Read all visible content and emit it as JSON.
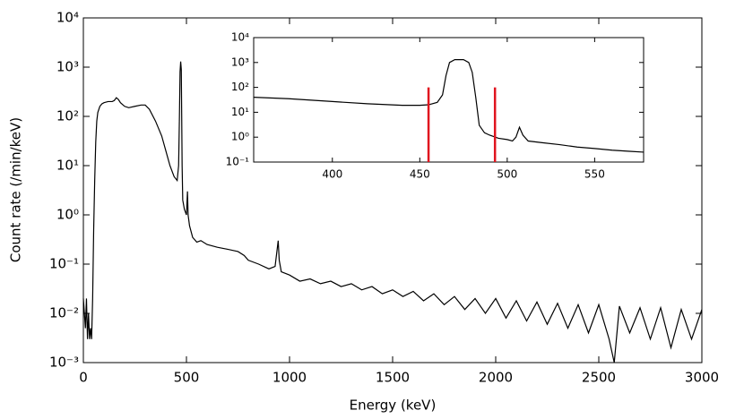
{
  "chart_data": [
    {
      "type": "line",
      "xlabel": "Energy (keV)",
      "ylabel": "Count rate (/min/keV)",
      "log_y": true,
      "color": "#000000",
      "xlim": [
        0,
        3000
      ],
      "ylim": [
        0.001,
        10000
      ],
      "xticks": [
        0,
        500,
        1000,
        1500,
        2000,
        2500,
        3000
      ],
      "yticks": [
        {
          "value": 0.001,
          "label": "10⁻³"
        },
        {
          "value": 0.01,
          "label": "10⁻²"
        },
        {
          "value": 0.1,
          "label": "10⁻¹"
        },
        {
          "value": 1,
          "label": "10⁰"
        },
        {
          "value": 10,
          "label": "10¹"
        },
        {
          "value": 100,
          "label": "10²"
        },
        {
          "value": 1000,
          "label": "10³"
        },
        {
          "value": 10000,
          "label": "10⁴"
        }
      ],
      "x": [
        0,
        5,
        10,
        15,
        20,
        25,
        30,
        35,
        40,
        45,
        50,
        55,
        60,
        65,
        70,
        80,
        90,
        100,
        120,
        140,
        150,
        160,
        170,
        180,
        200,
        220,
        250,
        280,
        300,
        320,
        350,
        380,
        400,
        420,
        440,
        455,
        462,
        466,
        469,
        472,
        475,
        477,
        479,
        482,
        490,
        500,
        505,
        508,
        515,
        530,
        550,
        570,
        600,
        650,
        700,
        750,
        780,
        800,
        850,
        900,
        930,
        945,
        950,
        960,
        1000,
        1050,
        1100,
        1150,
        1200,
        1250,
        1300,
        1350,
        1400,
        1450,
        1500,
        1550,
        1600,
        1650,
        1700,
        1750,
        1800,
        1850,
        1900,
        1950,
        2000,
        2050,
        2100,
        2150,
        2200,
        2250,
        2300,
        2350,
        2400,
        2450,
        2500,
        2550,
        2575,
        2600,
        2650,
        2700,
        2750,
        2800,
        2850,
        2900,
        2950,
        3000
      ],
      "values": [
        0.02,
        0.01,
        0.005,
        0.02,
        0.003,
        0.01,
        0.003,
        0.005,
        0.003,
        0.02,
        0.5,
        5,
        30,
        80,
        120,
        160,
        180,
        190,
        200,
        200,
        210,
        240,
        220,
        190,
        160,
        150,
        160,
        170,
        170,
        140,
        80,
        40,
        20,
        10,
        6,
        5,
        10,
        100,
        800,
        1300,
        900,
        100,
        10,
        2,
        1.3,
        1,
        3,
        1,
        0.6,
        0.35,
        0.28,
        0.3,
        0.25,
        0.22,
        0.2,
        0.18,
        0.15,
        0.12,
        0.1,
        0.08,
        0.09,
        0.3,
        0.12,
        0.07,
        0.06,
        0.045,
        0.05,
        0.04,
        0.045,
        0.035,
        0.04,
        0.03,
        0.035,
        0.025,
        0.03,
        0.022,
        0.028,
        0.018,
        0.025,
        0.015,
        0.022,
        0.012,
        0.02,
        0.01,
        0.02,
        0.008,
        0.018,
        0.007,
        0.017,
        0.006,
        0.016,
        0.005,
        0.015,
        0.004,
        0.015,
        0.003,
        0.001,
        0.014,
        0.004,
        0.013,
        0.003,
        0.013,
        0.002,
        0.012,
        0.003,
        0.012
      ]
    },
    {
      "type": "line",
      "log_y": true,
      "color": "#000000",
      "xlim": [
        355,
        578
      ],
      "ylim": [
        0.1,
        10000
      ],
      "xticks": [
        400,
        450,
        500,
        550
      ],
      "yticks": [
        {
          "value": 0.1,
          "label": "10⁻¹"
        },
        {
          "value": 1,
          "label": "10⁰"
        },
        {
          "value": 10,
          "label": "10¹"
        },
        {
          "value": 100,
          "label": "10²"
        },
        {
          "value": 1000,
          "label": "10³"
        },
        {
          "value": 10000,
          "label": "10⁴"
        }
      ],
      "x": [
        355,
        375,
        390,
        400,
        420,
        440,
        450,
        455,
        460,
        463,
        465,
        467,
        470,
        475,
        478,
        480,
        482,
        484,
        487,
        490,
        495,
        500,
        503,
        505,
        507,
        509,
        512,
        520,
        530,
        540,
        550,
        560,
        570,
        578
      ],
      "values": [
        40,
        35,
        30,
        27,
        22,
        19,
        19,
        20,
        25,
        50,
        300,
        1000,
        1300,
        1300,
        1000,
        400,
        40,
        3,
        1.5,
        1.2,
        0.9,
        0.8,
        0.7,
        1.0,
        2.5,
        1.2,
        0.7,
        0.6,
        0.5,
        0.4,
        0.35,
        0.3,
        0.27,
        0.25
      ],
      "vlines": [
        455,
        493
      ],
      "vline_top": 100,
      "vline_color": "#e0141e"
    }
  ]
}
